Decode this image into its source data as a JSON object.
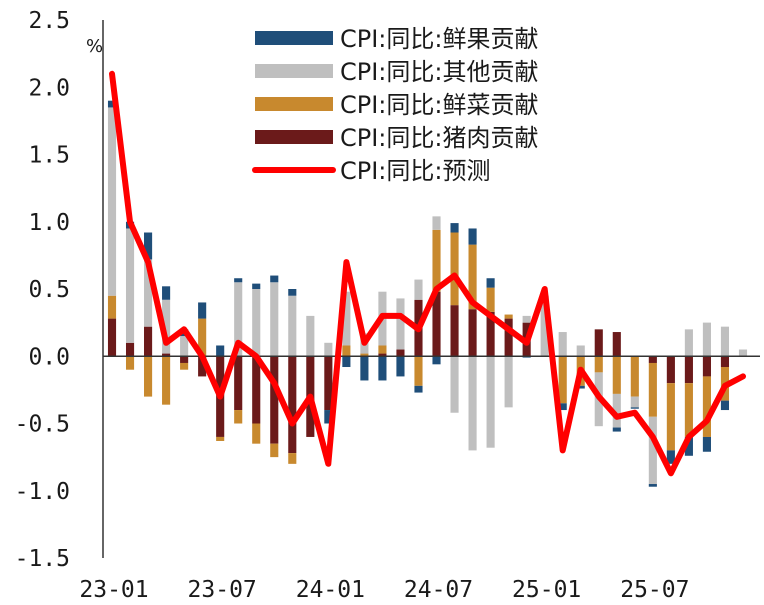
{
  "chart_data": {
    "type": "bar",
    "stacked": true,
    "title": "",
    "ylabel": "%",
    "xlabel": "",
    "ylim": [
      -1.5,
      2.5
    ],
    "yticks": [
      "2.5",
      "2.0",
      "1.5",
      "1.0",
      "0.5",
      "0.0",
      "-0.5",
      "-1.0",
      "-1.5"
    ],
    "ytick_values": [
      2.5,
      2.0,
      1.5,
      1.0,
      0.5,
      0.0,
      -0.5,
      -1.0,
      -1.5
    ],
    "xtick_labels": [
      {
        "label": "23-01",
        "index": 0
      },
      {
        "label": "23-07",
        "index": 6
      },
      {
        "label": "24-01",
        "index": 12
      },
      {
        "label": "24-07",
        "index": 18
      },
      {
        "label": "25-01",
        "index": 24
      },
      {
        "label": "25-07",
        "index": 30
      }
    ],
    "categories": [
      "23-01",
      "23-02",
      "23-03",
      "23-04",
      "23-05",
      "23-06",
      "23-07",
      "23-08",
      "23-09",
      "23-10",
      "23-11",
      "23-12",
      "24-01",
      "24-02",
      "24-03",
      "24-04",
      "24-05",
      "24-06",
      "24-07",
      "24-08",
      "24-09",
      "24-10",
      "24-11",
      "24-12",
      "25-01",
      "25-02",
      "25-03",
      "25-04",
      "25-05",
      "25-06",
      "25-07",
      "25-08",
      "25-09",
      "25-10",
      "25-11",
      "25-12"
    ],
    "series": [
      {
        "name": "CPI:同比:猪肉贡献",
        "kind": "bar",
        "color": "#6b1a1a",
        "values": [
          0.28,
          0.1,
          0.22,
          0.02,
          -0.05,
          -0.15,
          -0.6,
          -0.4,
          -0.5,
          -0.65,
          -0.72,
          -0.6,
          -0.4,
          0.0,
          0.0,
          0.02,
          0.05,
          0.42,
          0.48,
          0.38,
          0.35,
          0.33,
          0.28,
          0.25,
          0.0,
          0.0,
          0.0,
          0.2,
          0.18,
          0.0,
          -0.05,
          -0.2,
          -0.2,
          -0.15,
          -0.08,
          0.0
        ]
      },
      {
        "name": "CPI:同比:鲜菜贡献",
        "kind": "bar",
        "color": "#c8892e",
        "values": [
          0.17,
          -0.1,
          -0.3,
          -0.36,
          -0.05,
          0.28,
          -0.03,
          -0.1,
          -0.15,
          -0.1,
          -0.08,
          0.0,
          0.0,
          0.08,
          0.02,
          0.06,
          0.0,
          -0.22,
          0.46,
          0.54,
          0.48,
          0.18,
          0.03,
          0.0,
          0.0,
          -0.35,
          -0.22,
          -0.12,
          -0.28,
          -0.3,
          -0.4,
          -0.5,
          -0.4,
          -0.45,
          -0.25,
          0.0
        ]
      },
      {
        "name": "CPI:同比:其他贡献",
        "kind": "bar",
        "color": "#bfbfbf",
        "values": [
          1.4,
          0.85,
          0.5,
          0.4,
          0.15,
          0.0,
          0.0,
          0.55,
          0.5,
          0.55,
          0.45,
          0.3,
          0.1,
          0.4,
          0.15,
          0.4,
          0.38,
          0.15,
          0.1,
          -0.42,
          -0.7,
          -0.68,
          -0.38,
          0.05,
          0.45,
          0.18,
          0.08,
          -0.4,
          -0.25,
          -0.08,
          -0.5,
          0.0,
          0.2,
          0.25,
          0.22,
          0.05
        ]
      },
      {
        "name": "CPI:同比:鲜果贡献",
        "kind": "bar",
        "color": "#1f4e79",
        "values": [
          0.05,
          0.05,
          0.2,
          0.1,
          0.05,
          0.12,
          0.08,
          0.03,
          0.04,
          0.05,
          0.05,
          0.0,
          -0.1,
          -0.08,
          -0.18,
          -0.18,
          -0.15,
          -0.05,
          -0.06,
          0.07,
          0.12,
          0.07,
          0.0,
          -0.01,
          0.0,
          -0.05,
          -0.02,
          0.0,
          -0.03,
          -0.01,
          -0.02,
          -0.1,
          -0.14,
          -0.11,
          -0.07,
          0.0
        ]
      },
      {
        "name": "CPI:同比:预测",
        "kind": "line",
        "color": "#ff0000",
        "values": [
          2.1,
          1.0,
          0.7,
          0.1,
          0.2,
          0.0,
          -0.3,
          0.1,
          0.0,
          -0.2,
          -0.5,
          -0.3,
          -0.8,
          0.7,
          0.1,
          0.3,
          0.3,
          0.2,
          0.5,
          0.6,
          0.4,
          0.3,
          0.2,
          0.1,
          0.5,
          -0.7,
          -0.1,
          -0.3,
          -0.45,
          -0.42,
          -0.6,
          -0.87,
          -0.6,
          -0.48,
          -0.22,
          -0.15
        ]
      }
    ],
    "legend": {
      "position": "top-right",
      "entries": [
        "CPI:同比:鲜果贡献",
        "CPI:同比:其他贡献",
        "CPI:同比:鲜菜贡献",
        "CPI:同比:猪肉贡献",
        "CPI:同比:预测"
      ],
      "colors": [
        "#1f4e79",
        "#bfbfbf",
        "#c8892e",
        "#6b1a1a",
        "#ff0000"
      ]
    },
    "grid": false
  }
}
